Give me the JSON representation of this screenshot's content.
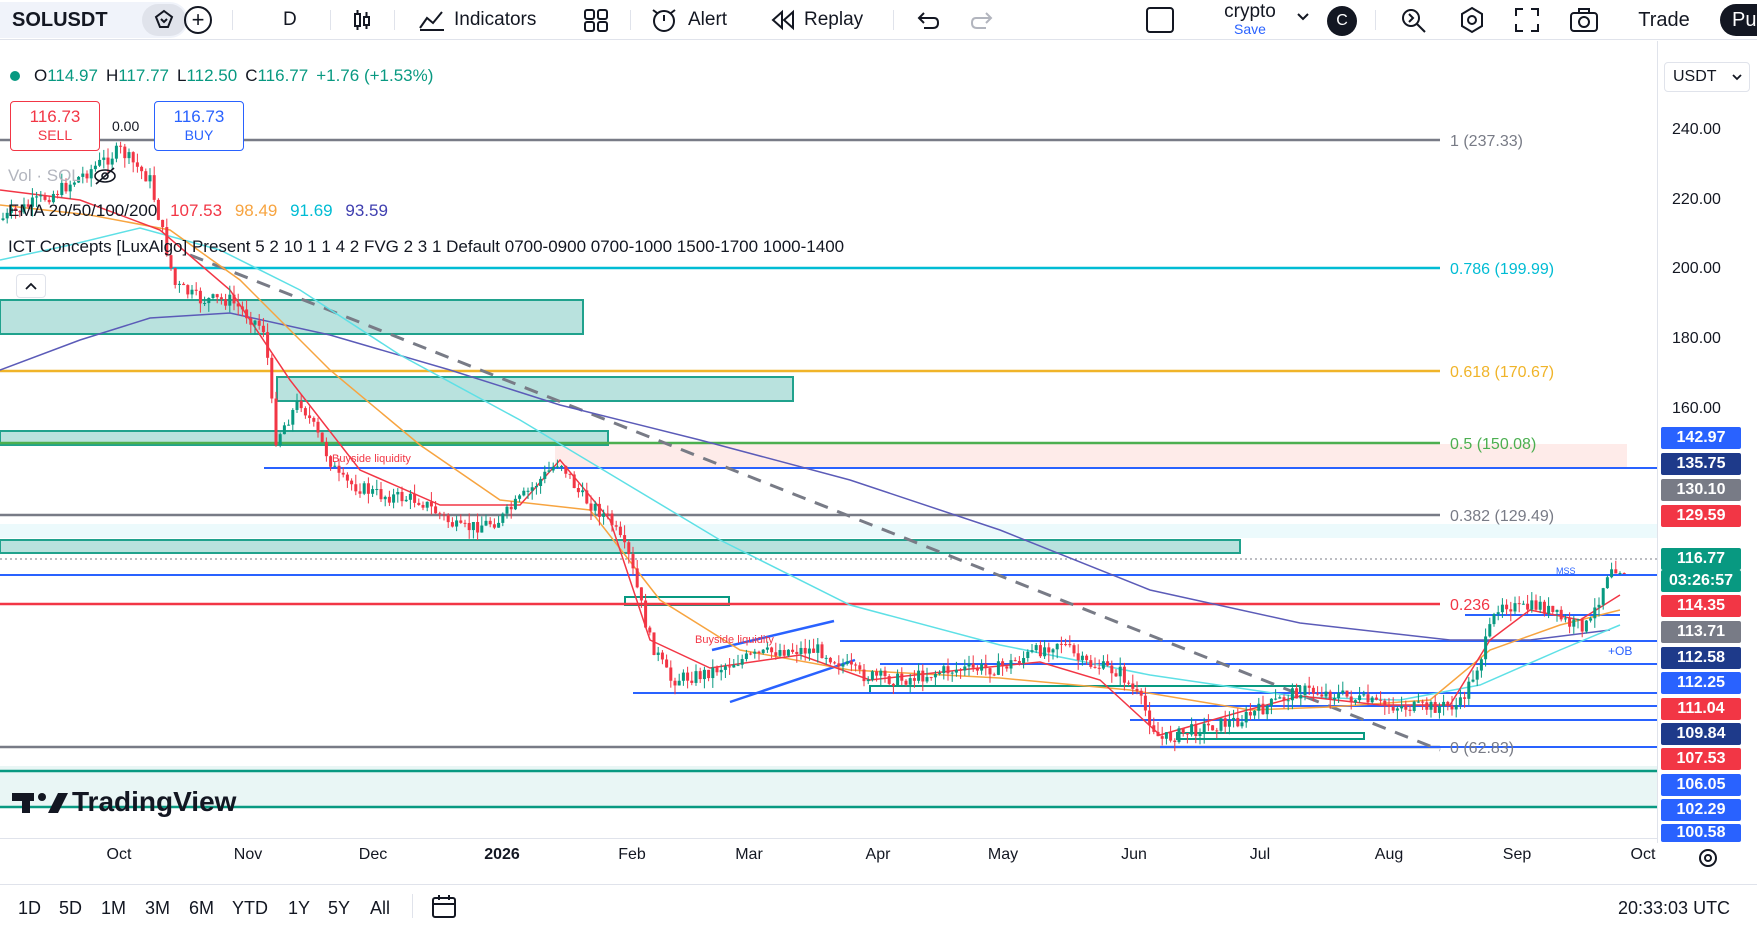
{
  "toolbar": {
    "symbol": "SOLUSDT",
    "interval": "D",
    "indicators_label": "Indicators",
    "alert_label": "Alert",
    "replay_label": "Replay",
    "layout_name": "crypto",
    "layout_save": "Save",
    "avatar_letter": "C",
    "trade_label": "Trade",
    "publish_label": "Pu"
  },
  "legend": {
    "ohlc": {
      "o_label": "O",
      "o": "114.97",
      "h_label": "H",
      "h": "117.77",
      "l_label": "L",
      "l": "112.50",
      "c_label": "C",
      "c": "116.77",
      "chg": "+1.76 (+1.53%)"
    },
    "sell_price": "116.73",
    "sell_label": "SELL",
    "spread": "0.00",
    "buy_price": "116.73",
    "buy_label": "BUY",
    "vol_label": "Vol · SOL",
    "ema_label": "EMA 20/50/100/200",
    "ema_values": [
      "107.53",
      "98.49",
      "91.69",
      "93.59"
    ],
    "ict_label": "ICT Concepts [LuxAlgo] Present 5 2 10 1 1 4 2 FVG 2 3 1 Default 0700-0900 0700-1000 1500-1700 1000-1400"
  },
  "currency": "USDT",
  "axis_prices": [
    "240.00",
    "220.00",
    "200.00",
    "180.00",
    "160.00"
  ],
  "price_tags": [
    {
      "value": "142.97",
      "color": "#2962ff"
    },
    {
      "value": "135.75",
      "color": "#1e3a8a"
    },
    {
      "value": "130.10",
      "color": "#787b86"
    },
    {
      "value": "129.59",
      "color": "#f23645"
    },
    {
      "value": "116.77",
      "color": "#089981"
    },
    {
      "value": "03:26:57",
      "color": "#089981"
    },
    {
      "value": "114.35",
      "color": "#f23645"
    },
    {
      "value": "113.71",
      "color": "#787b86"
    },
    {
      "value": "112.58",
      "color": "#1e3a8a"
    },
    {
      "value": "112.25",
      "color": "#2962ff"
    },
    {
      "value": "111.04",
      "color": "#f23645"
    },
    {
      "value": "109.84",
      "color": "#1e3a8a"
    },
    {
      "value": "107.53",
      "color": "#f23645"
    },
    {
      "value": "106.05",
      "color": "#2962ff"
    },
    {
      "value": "102.29",
      "color": "#2962ff"
    },
    {
      "value": "100.58",
      "color": "#2962ff"
    }
  ],
  "fib_levels": [
    {
      "label": "1 (237.33)",
      "color": "#787b86"
    },
    {
      "label": "0.786 (199.99)",
      "color": "#00bcd4"
    },
    {
      "label": "0.618 (170.67)",
      "color": "#f0b429"
    },
    {
      "label": "0.5 (150.08)",
      "color": "#4caf50"
    },
    {
      "label": "0.382 (129.49)",
      "color": "#787b86"
    },
    {
      "label": "0.236",
      "color": "#f23645"
    },
    {
      "label": "0 (62.83)",
      "color": "#787b86"
    }
  ],
  "annotations": {
    "buyside1": "Buyside liquidity",
    "buyside2": "Buyside liquidity",
    "ob": "+OB",
    "mss": "MSS"
  },
  "time_axis": [
    "Oct",
    "Nov",
    "Dec",
    "2026",
    "Feb",
    "Mar",
    "Apr",
    "May",
    "Jun",
    "Jul",
    "Aug",
    "Sep",
    "Oct"
  ],
  "ranges": [
    "1D",
    "5D",
    "1M",
    "3M",
    "6M",
    "YTD",
    "1Y",
    "5Y",
    "All"
  ],
  "clock": "20:33:03 UTC",
  "watermark": "TradingView",
  "colors": {
    "up": "#089981",
    "down": "#f23645",
    "ema20": "#f23645",
    "ema50": "#f7a440",
    "ema100": "#5ee0e6",
    "ema200": "#5b5bb8"
  }
}
